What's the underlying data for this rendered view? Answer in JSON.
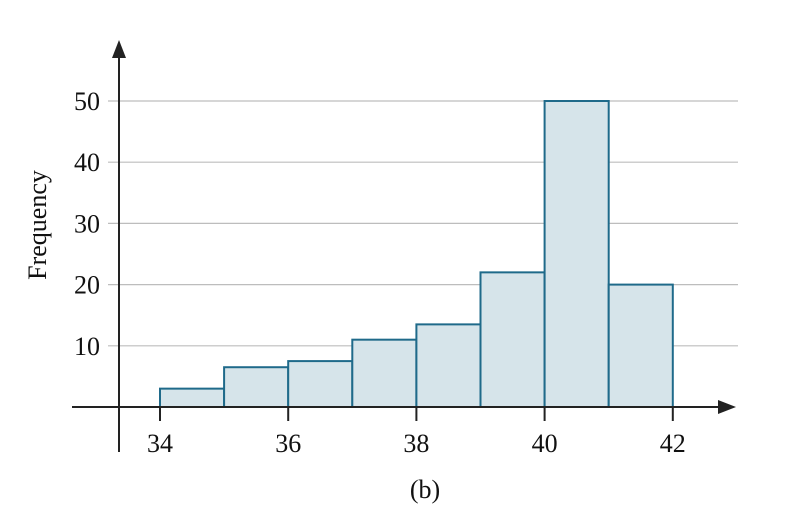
{
  "chart_data": {
    "type": "bar",
    "subtype": "histogram",
    "caption": "(b)",
    "ylabel": "Frequency",
    "xlabel": "",
    "bins": [
      {
        "start": 34,
        "end": 35,
        "value": 3
      },
      {
        "start": 35,
        "end": 36,
        "value": 6.5
      },
      {
        "start": 36,
        "end": 37,
        "value": 7.5
      },
      {
        "start": 37,
        "end": 38,
        "value": 11
      },
      {
        "start": 38,
        "end": 39,
        "value": 13.5
      },
      {
        "start": 39,
        "end": 40,
        "value": 22
      },
      {
        "start": 40,
        "end": 41,
        "value": 50
      },
      {
        "start": 41,
        "end": 42,
        "value": 20
      }
    ],
    "xticks": [
      "34",
      "36",
      "38",
      "40",
      "42"
    ],
    "yticks": [
      "10",
      "20",
      "30",
      "40",
      "50"
    ],
    "xlim": [
      33,
      43
    ],
    "ylim": [
      0,
      55
    ],
    "grid": true,
    "colors": {
      "bar_fill": "#d6e4ea",
      "bar_stroke": "#1f6a8a",
      "grid": "#bdbdbd",
      "axis": "#222222"
    }
  }
}
